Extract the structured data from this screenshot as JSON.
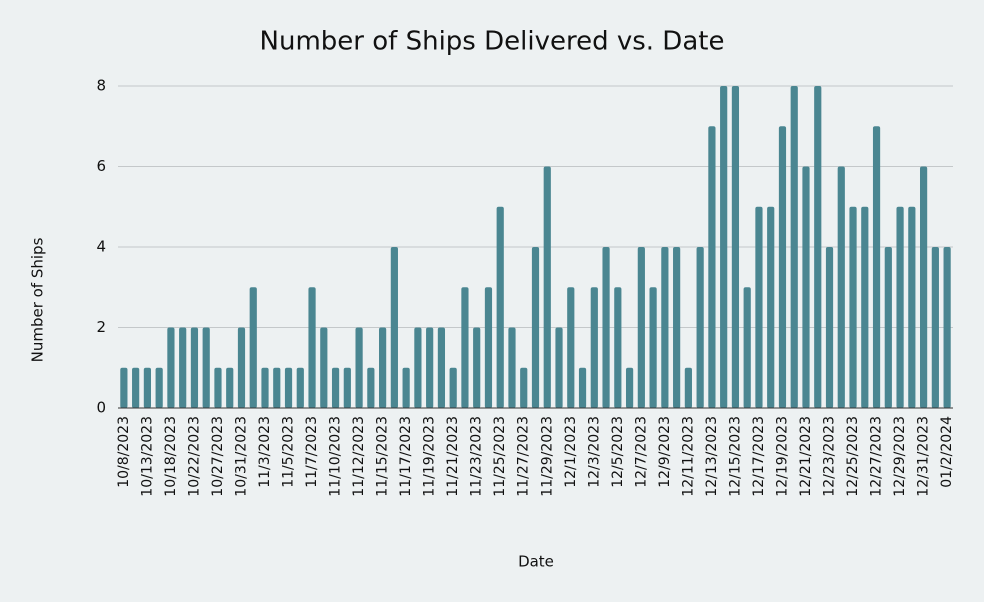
{
  "chart_data": {
    "type": "bar",
    "title": "Number of Ships Delivered vs. Date",
    "x_label": "Date",
    "y_label": "Number of Ships",
    "categories": [
      "10/8/2023",
      null,
      "10/13/2023",
      null,
      "10/18/2023",
      null,
      "10/22/2023",
      null,
      "10/27/2023",
      null,
      "10/31/2023",
      null,
      "11/3/2023",
      null,
      "11/5/2023",
      null,
      "11/7/2023",
      null,
      "11/10/2023",
      null,
      "11/12/2023",
      null,
      "11/15/2023",
      null,
      "11/17/2023",
      null,
      "11/19/2023",
      null,
      "11/21/2023",
      null,
      "11/23/2023",
      null,
      "11/25/2023",
      null,
      "11/27/2023",
      null,
      "11/29/2023",
      null,
      "12/1/2023",
      null,
      "12/3/2023",
      null,
      "12/5/2023",
      null,
      "12/7/2023",
      null,
      "12/9/2023",
      null,
      "12/11/2023",
      null,
      "12/13/2023",
      null,
      "12/15/2023",
      null,
      "12/17/2023",
      null,
      "12/19/2023",
      null,
      "12/21/2023",
      null,
      "12/23/2023",
      null,
      "12/25/2023",
      null,
      "12/27/2023",
      null,
      "12/29/2023",
      null,
      "12/31/2023",
      null,
      "01/2/2024"
    ],
    "values": [
      1,
      1,
      1,
      1,
      2,
      2,
      2,
      2,
      1,
      1,
      2,
      3,
      1,
      1,
      1,
      1,
      3,
      2,
      1,
      1,
      2,
      1,
      2,
      4,
      1,
      2,
      2,
      2,
      1,
      3,
      2,
      3,
      5,
      2,
      1,
      4,
      6,
      2,
      3,
      1,
      3,
      4,
      3,
      1,
      4,
      3,
      4,
      4,
      1,
      4,
      7,
      8,
      8,
      3,
      5,
      5,
      7,
      8,
      6,
      8,
      4,
      6,
      5,
      5,
      7,
      4,
      5,
      5,
      6,
      4,
      4
    ],
    "color": "#4a8691",
    "ylim": [
      0,
      8
    ],
    "yticks": [
      0,
      2,
      4,
      6,
      8
    ],
    "grid": true
  }
}
